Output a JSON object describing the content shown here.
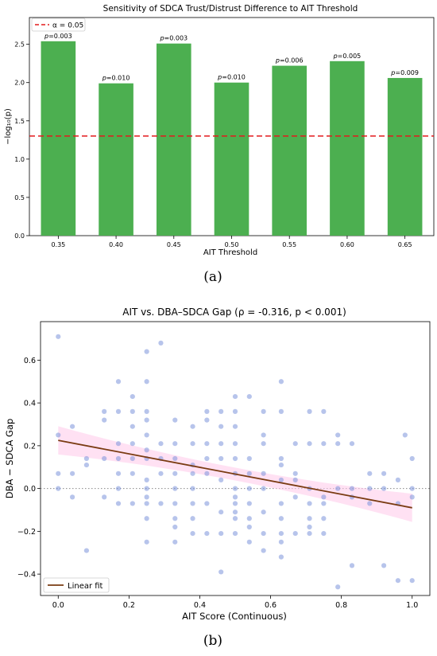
{
  "chart_data": [
    {
      "type": "bar",
      "title": "Sensitivity of SDCA Trust/Distrust Difference to AIT Threshold",
      "xlabel": "AIT Threshold",
      "ylabel": "−log₁₀(p)",
      "categories": [
        "0.35",
        "0.40",
        "0.45",
        "0.50",
        "0.55",
        "0.60",
        "0.65"
      ],
      "values": [
        2.54,
        1.99,
        2.51,
        2.0,
        2.22,
        2.28,
        2.06
      ],
      "bar_labels": [
        "p=0.003",
        "p=0.010",
        "p=0.003",
        "p=0.010",
        "p=0.006",
        "p=0.005",
        "p=0.009"
      ],
      "ylim": [
        0,
        2.85
      ],
      "yticks": [
        "0.0",
        "0.5",
        "1.0",
        "1.5",
        "2.0",
        "2.5"
      ],
      "reference_line": {
        "value": 1.301,
        "label": "α = 0.05",
        "color": "#e31a1c"
      },
      "bar_color": "#4caf50",
      "legend": "top-left",
      "caption": "(a)"
    },
    {
      "type": "scatter",
      "title": "AIT vs. DBA–SDCA Gap (ρ = -0.316, p < 0.001)",
      "xlabel": "AIT Score (Continuous)",
      "ylabel": "DBA − SDCA Gap",
      "xlim": [
        -0.05,
        1.05
      ],
      "ylim": [
        -0.5,
        0.78
      ],
      "xticks": [
        "0.0",
        "0.2",
        "0.4",
        "0.6",
        "0.8",
        "1.0"
      ],
      "yticks": [
        "−0.4",
        "−0.2",
        "0.0",
        "0.2",
        "0.4",
        "0.6"
      ],
      "point_color": "#7b93db",
      "fit": {
        "label": "Linear fit",
        "x": [
          0,
          1
        ],
        "y": [
          0.225,
          -0.09
        ],
        "color": "#7a3b12",
        "band_color": "#ffc8ea"
      },
      "zero_line": 0,
      "legend": "bottom-left",
      "caption": "(b)",
      "points": [
        [
          0,
          0.71
        ],
        [
          0,
          0.25
        ],
        [
          0,
          0.07
        ],
        [
          0,
          0
        ],
        [
          0.04,
          0.29
        ],
        [
          0.04,
          0.07
        ],
        [
          0.04,
          -0.04
        ],
        [
          0.08,
          0.14
        ],
        [
          0.08,
          0.11
        ],
        [
          0.08,
          -0.29
        ],
        [
          0.13,
          0.36
        ],
        [
          0.13,
          0.32
        ],
        [
          0.13,
          0.14
        ],
        [
          0.13,
          -0.04
        ],
        [
          0.17,
          0.5
        ],
        [
          0.17,
          0.36
        ],
        [
          0.17,
          0.21
        ],
        [
          0.17,
          0.14
        ],
        [
          0.17,
          0.07
        ],
        [
          0.17,
          0
        ],
        [
          0.17,
          -0.07
        ],
        [
          0.21,
          0.43
        ],
        [
          0.21,
          0.36
        ],
        [
          0.21,
          0.29
        ],
        [
          0.21,
          0.21
        ],
        [
          0.21,
          0.14
        ],
        [
          0.21,
          0.07
        ],
        [
          0.21,
          -0.07
        ],
        [
          0.25,
          0.64
        ],
        [
          0.25,
          0.5
        ],
        [
          0.25,
          0.36
        ],
        [
          0.25,
          0.32
        ],
        [
          0.25,
          0.25
        ],
        [
          0.25,
          0.18
        ],
        [
          0.25,
          0.14
        ],
        [
          0.25,
          0.04
        ],
        [
          0.25,
          0
        ],
        [
          0.25,
          -0.04
        ],
        [
          0.25,
          -0.07
        ],
        [
          0.25,
          -0.14
        ],
        [
          0.25,
          -0.25
        ],
        [
          0.29,
          0.68
        ],
        [
          0.29,
          0.21
        ],
        [
          0.29,
          0.14
        ],
        [
          0.29,
          0.07
        ],
        [
          0.29,
          -0.07
        ],
        [
          0.33,
          0.32
        ],
        [
          0.33,
          0.21
        ],
        [
          0.33,
          0.14
        ],
        [
          0.33,
          0.07
        ],
        [
          0.33,
          0
        ],
        [
          0.33,
          -0.07
        ],
        [
          0.33,
          -0.14
        ],
        [
          0.33,
          -0.18
        ],
        [
          0.33,
          -0.25
        ],
        [
          0.38,
          0.29
        ],
        [
          0.38,
          0.21
        ],
        [
          0.38,
          0.11
        ],
        [
          0.38,
          0.07
        ],
        [
          0.38,
          0
        ],
        [
          0.38,
          -0.07
        ],
        [
          0.38,
          -0.14
        ],
        [
          0.38,
          -0.21
        ],
        [
          0.42,
          0.36
        ],
        [
          0.42,
          0.32
        ],
        [
          0.42,
          0.21
        ],
        [
          0.42,
          0.14
        ],
        [
          0.42,
          0.07
        ],
        [
          0.42,
          -0.07
        ],
        [
          0.42,
          -0.21
        ],
        [
          0.46,
          0.36
        ],
        [
          0.46,
          0.29
        ],
        [
          0.46,
          0.21
        ],
        [
          0.46,
          0.14
        ],
        [
          0.46,
          0.04
        ],
        [
          0.46,
          -0.11
        ],
        [
          0.46,
          -0.21
        ],
        [
          0.46,
          -0.39
        ],
        [
          0.5,
          0.43
        ],
        [
          0.5,
          0.36
        ],
        [
          0.5,
          0.29
        ],
        [
          0.5,
          0.21
        ],
        [
          0.5,
          0.14
        ],
        [
          0.5,
          0.07
        ],
        [
          0.5,
          0
        ],
        [
          0.5,
          -0.04
        ],
        [
          0.5,
          -0.07
        ],
        [
          0.5,
          -0.11
        ],
        [
          0.5,
          -0.14
        ],
        [
          0.5,
          -0.21
        ],
        [
          0.54,
          0.43
        ],
        [
          0.54,
          0.14
        ],
        [
          0.54,
          0.07
        ],
        [
          0.54,
          0
        ],
        [
          0.54,
          -0.07
        ],
        [
          0.54,
          -0.14
        ],
        [
          0.54,
          -0.18
        ],
        [
          0.54,
          -0.25
        ],
        [
          0.58,
          0.36
        ],
        [
          0.58,
          0.25
        ],
        [
          0.58,
          0.21
        ],
        [
          0.58,
          0.07
        ],
        [
          0.58,
          0
        ],
        [
          0.58,
          -0.11
        ],
        [
          0.58,
          -0.21
        ],
        [
          0.58,
          -0.29
        ],
        [
          0.63,
          0.5
        ],
        [
          0.63,
          0.36
        ],
        [
          0.63,
          0.14
        ],
        [
          0.63,
          0.11
        ],
        [
          0.63,
          0.04
        ],
        [
          0.63,
          -0.07
        ],
        [
          0.63,
          -0.14
        ],
        [
          0.63,
          -0.21
        ],
        [
          0.63,
          -0.25
        ],
        [
          0.63,
          -0.32
        ],
        [
          0.67,
          0.21
        ],
        [
          0.67,
          0.07
        ],
        [
          0.67,
          0.04
        ],
        [
          0.67,
          -0.04
        ],
        [
          0.67,
          -0.21
        ],
        [
          0.71,
          0.36
        ],
        [
          0.71,
          0.21
        ],
        [
          0.71,
          0
        ],
        [
          0.71,
          -0.07
        ],
        [
          0.71,
          -0.14
        ],
        [
          0.71,
          -0.18
        ],
        [
          0.71,
          -0.21
        ],
        [
          0.75,
          0.36
        ],
        [
          0.75,
          0.21
        ],
        [
          0.75,
          -0.04
        ],
        [
          0.75,
          -0.07
        ],
        [
          0.75,
          -0.14
        ],
        [
          0.75,
          -0.21
        ],
        [
          0.79,
          0.25
        ],
        [
          0.79,
          0.21
        ],
        [
          0.79,
          0
        ],
        [
          0.79,
          -0.46
        ],
        [
          0.83,
          0.21
        ],
        [
          0.83,
          0
        ],
        [
          0.83,
          -0.04
        ],
        [
          0.83,
          -0.36
        ],
        [
          0.88,
          0.07
        ],
        [
          0.88,
          0
        ],
        [
          0.88,
          -0.07
        ],
        [
          0.92,
          0.07
        ],
        [
          0.92,
          0
        ],
        [
          0.92,
          -0.36
        ],
        [
          0.96,
          0.04
        ],
        [
          0.96,
          -0.07
        ],
        [
          0.96,
          -0.43
        ],
        [
          0.98,
          0.25
        ],
        [
          1,
          0.14
        ],
        [
          1,
          0
        ],
        [
          1,
          -0.04
        ],
        [
          1,
          -0.43
        ]
      ]
    }
  ]
}
